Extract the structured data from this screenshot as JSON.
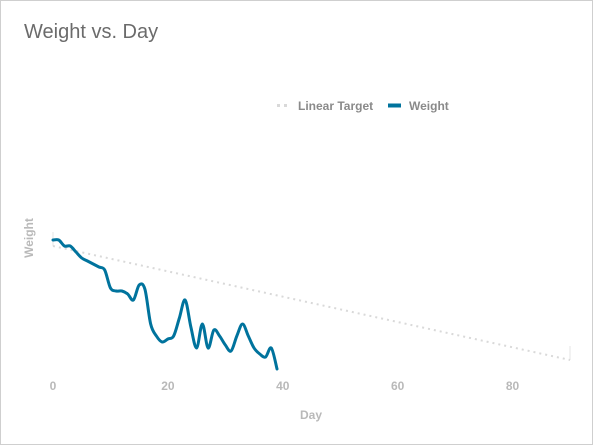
{
  "chart_data": {
    "type": "line",
    "title": "Weight vs. Day",
    "xlabel": "Day",
    "ylabel": "Weight",
    "xlim": [
      0,
      90
    ],
    "xticks": [
      0,
      20,
      40,
      60,
      80
    ],
    "legend_position": "top-right",
    "grid": false,
    "series": [
      {
        "name": "Linear Target",
        "style": "dotted",
        "color": "#d9d9d9",
        "x": [
          0,
          90
        ],
        "y": [
          199,
          180
        ]
      },
      {
        "name": "Weight",
        "style": "solid",
        "color": "#00739d",
        "x": [
          0,
          1,
          2,
          3,
          4,
          5,
          6,
          7,
          8,
          9,
          10,
          11,
          12,
          13,
          14,
          15,
          16,
          17,
          18,
          19,
          20,
          21,
          22,
          23,
          24,
          25,
          26,
          27,
          28,
          29,
          30,
          31,
          32,
          33,
          34,
          35,
          36,
          37,
          38,
          39
        ],
        "y": [
          200,
          200,
          199,
          199,
          198,
          197,
          196.5,
          196,
          195.5,
          195,
          192,
          191.5,
          191.5,
          191,
          190,
          192.5,
          191.8,
          186,
          184,
          183,
          183.5,
          184,
          187,
          190,
          185.5,
          182,
          186,
          182,
          185,
          184,
          182.5,
          181.5,
          184,
          186,
          184,
          182,
          181,
          180.5,
          182,
          178.5
        ]
      }
    ]
  }
}
